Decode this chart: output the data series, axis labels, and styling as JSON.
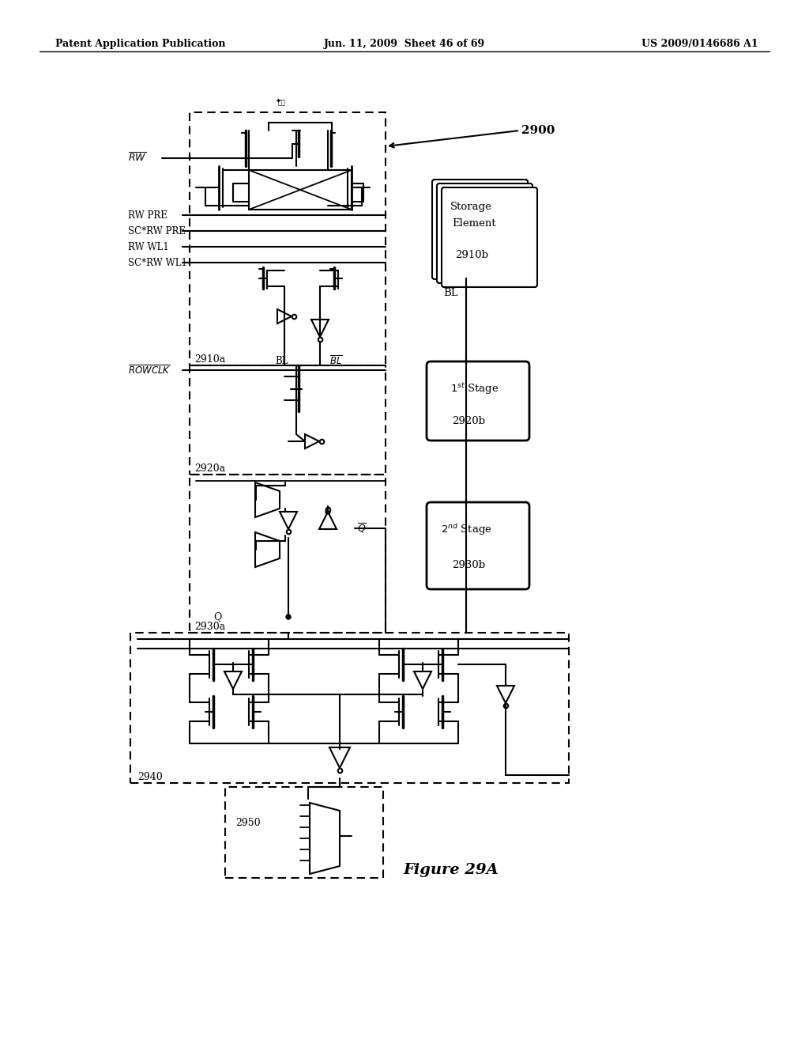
{
  "patent_header_left": "Patent Application Publication",
  "patent_header_mid": "Jun. 11, 2009  Sheet 46 of 69",
  "patent_header_right": "US 2009/0146686 A1",
  "figure_label": "Figure 29A",
  "bg_color": "#ffffff"
}
